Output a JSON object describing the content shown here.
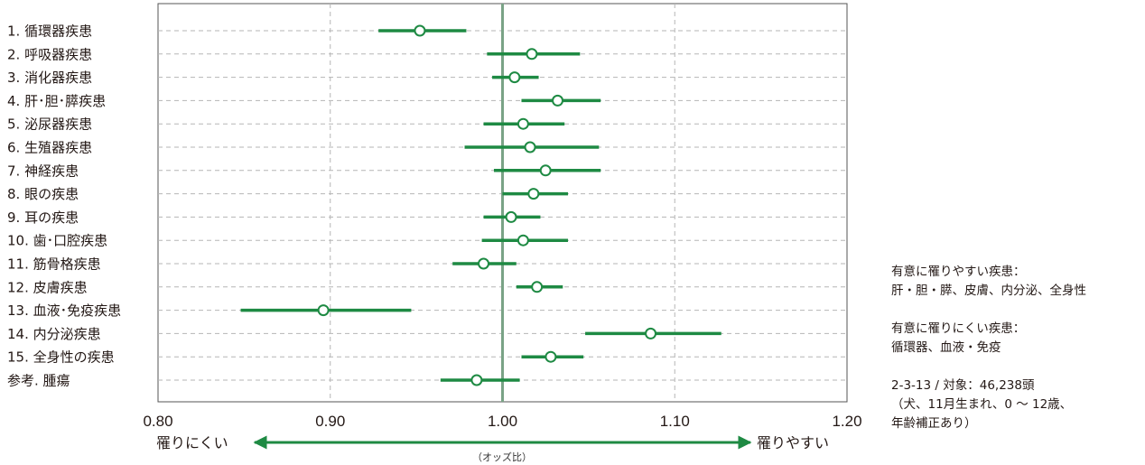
{
  "chart_data": {
    "type": "forest",
    "title": "",
    "x_axis_caption": "（オッズ比）",
    "xlim": [
      0.8,
      1.2
    ],
    "x_ticks": [
      "0.80",
      "0.90",
      "1.00",
      "1.10",
      "1.20"
    ],
    "reference_line": 1.0,
    "direction_labels": {
      "left": "罹りにくい",
      "right": "罹りやすい"
    },
    "grid": true,
    "colors": {
      "estimate": "#1e8a43",
      "reference": "#7aa386",
      "grid": "#b5b5b5",
      "arrow": "#1e8a43"
    },
    "rows": [
      {
        "label": "1.  循環器疾患",
        "or": 0.952,
        "lo": 0.928,
        "hi": 0.979
      },
      {
        "label": "2.  呼吸器疾患",
        "or": 1.017,
        "lo": 0.991,
        "hi": 1.045
      },
      {
        "label": "3.  消化器疾患",
        "or": 1.007,
        "lo": 0.994,
        "hi": 1.021
      },
      {
        "label": "4.  肝･胆･膵疾患",
        "or": 1.032,
        "lo": 1.011,
        "hi": 1.057
      },
      {
        "label": "5.  泌尿器疾患",
        "or": 1.012,
        "lo": 0.989,
        "hi": 1.036
      },
      {
        "label": "6.  生殖器疾患",
        "or": 1.016,
        "lo": 0.978,
        "hi": 1.056
      },
      {
        "label": "7.  神経疾患",
        "or": 1.025,
        "lo": 0.995,
        "hi": 1.057
      },
      {
        "label": "8.  眼の疾患",
        "or": 1.018,
        "lo": 1.0,
        "hi": 1.038
      },
      {
        "label": "9.  耳の疾患",
        "or": 1.005,
        "lo": 0.989,
        "hi": 1.022
      },
      {
        "label": "10. 歯･口腔疾患",
        "or": 1.012,
        "lo": 0.988,
        "hi": 1.038
      },
      {
        "label": "11. 筋骨格疾患",
        "or": 0.989,
        "lo": 0.971,
        "hi": 1.008
      },
      {
        "label": "12. 皮膚疾患",
        "or": 1.02,
        "lo": 1.008,
        "hi": 1.035
      },
      {
        "label": "13. 血液･免疫疾患",
        "or": 0.896,
        "lo": 0.848,
        "hi": 0.947
      },
      {
        "label": "14. 内分泌疾患",
        "or": 1.086,
        "lo": 1.048,
        "hi": 1.127
      },
      {
        "label": "15. 全身性の疾患",
        "or": 1.028,
        "lo": 1.011,
        "hi": 1.047
      },
      {
        "label": "参考. 腫瘍",
        "or": 0.985,
        "lo": 0.964,
        "hi": 1.01
      }
    ]
  },
  "notes": {
    "likely_heading": "有意に罹りやすい疾患：",
    "likely_list": "肝・胆・膵、皮膚、内分泌、全身性",
    "unlikely_heading": "有意に罹りにくい疾患：",
    "unlikely_list": "循環器、血液・免疫",
    "source_line1": "2-3-13 / 対象：46,238頭",
    "source_line2": "（犬、11月生まれ、0 ～ 12歳、",
    "source_line3": "年齢補正あり）"
  }
}
